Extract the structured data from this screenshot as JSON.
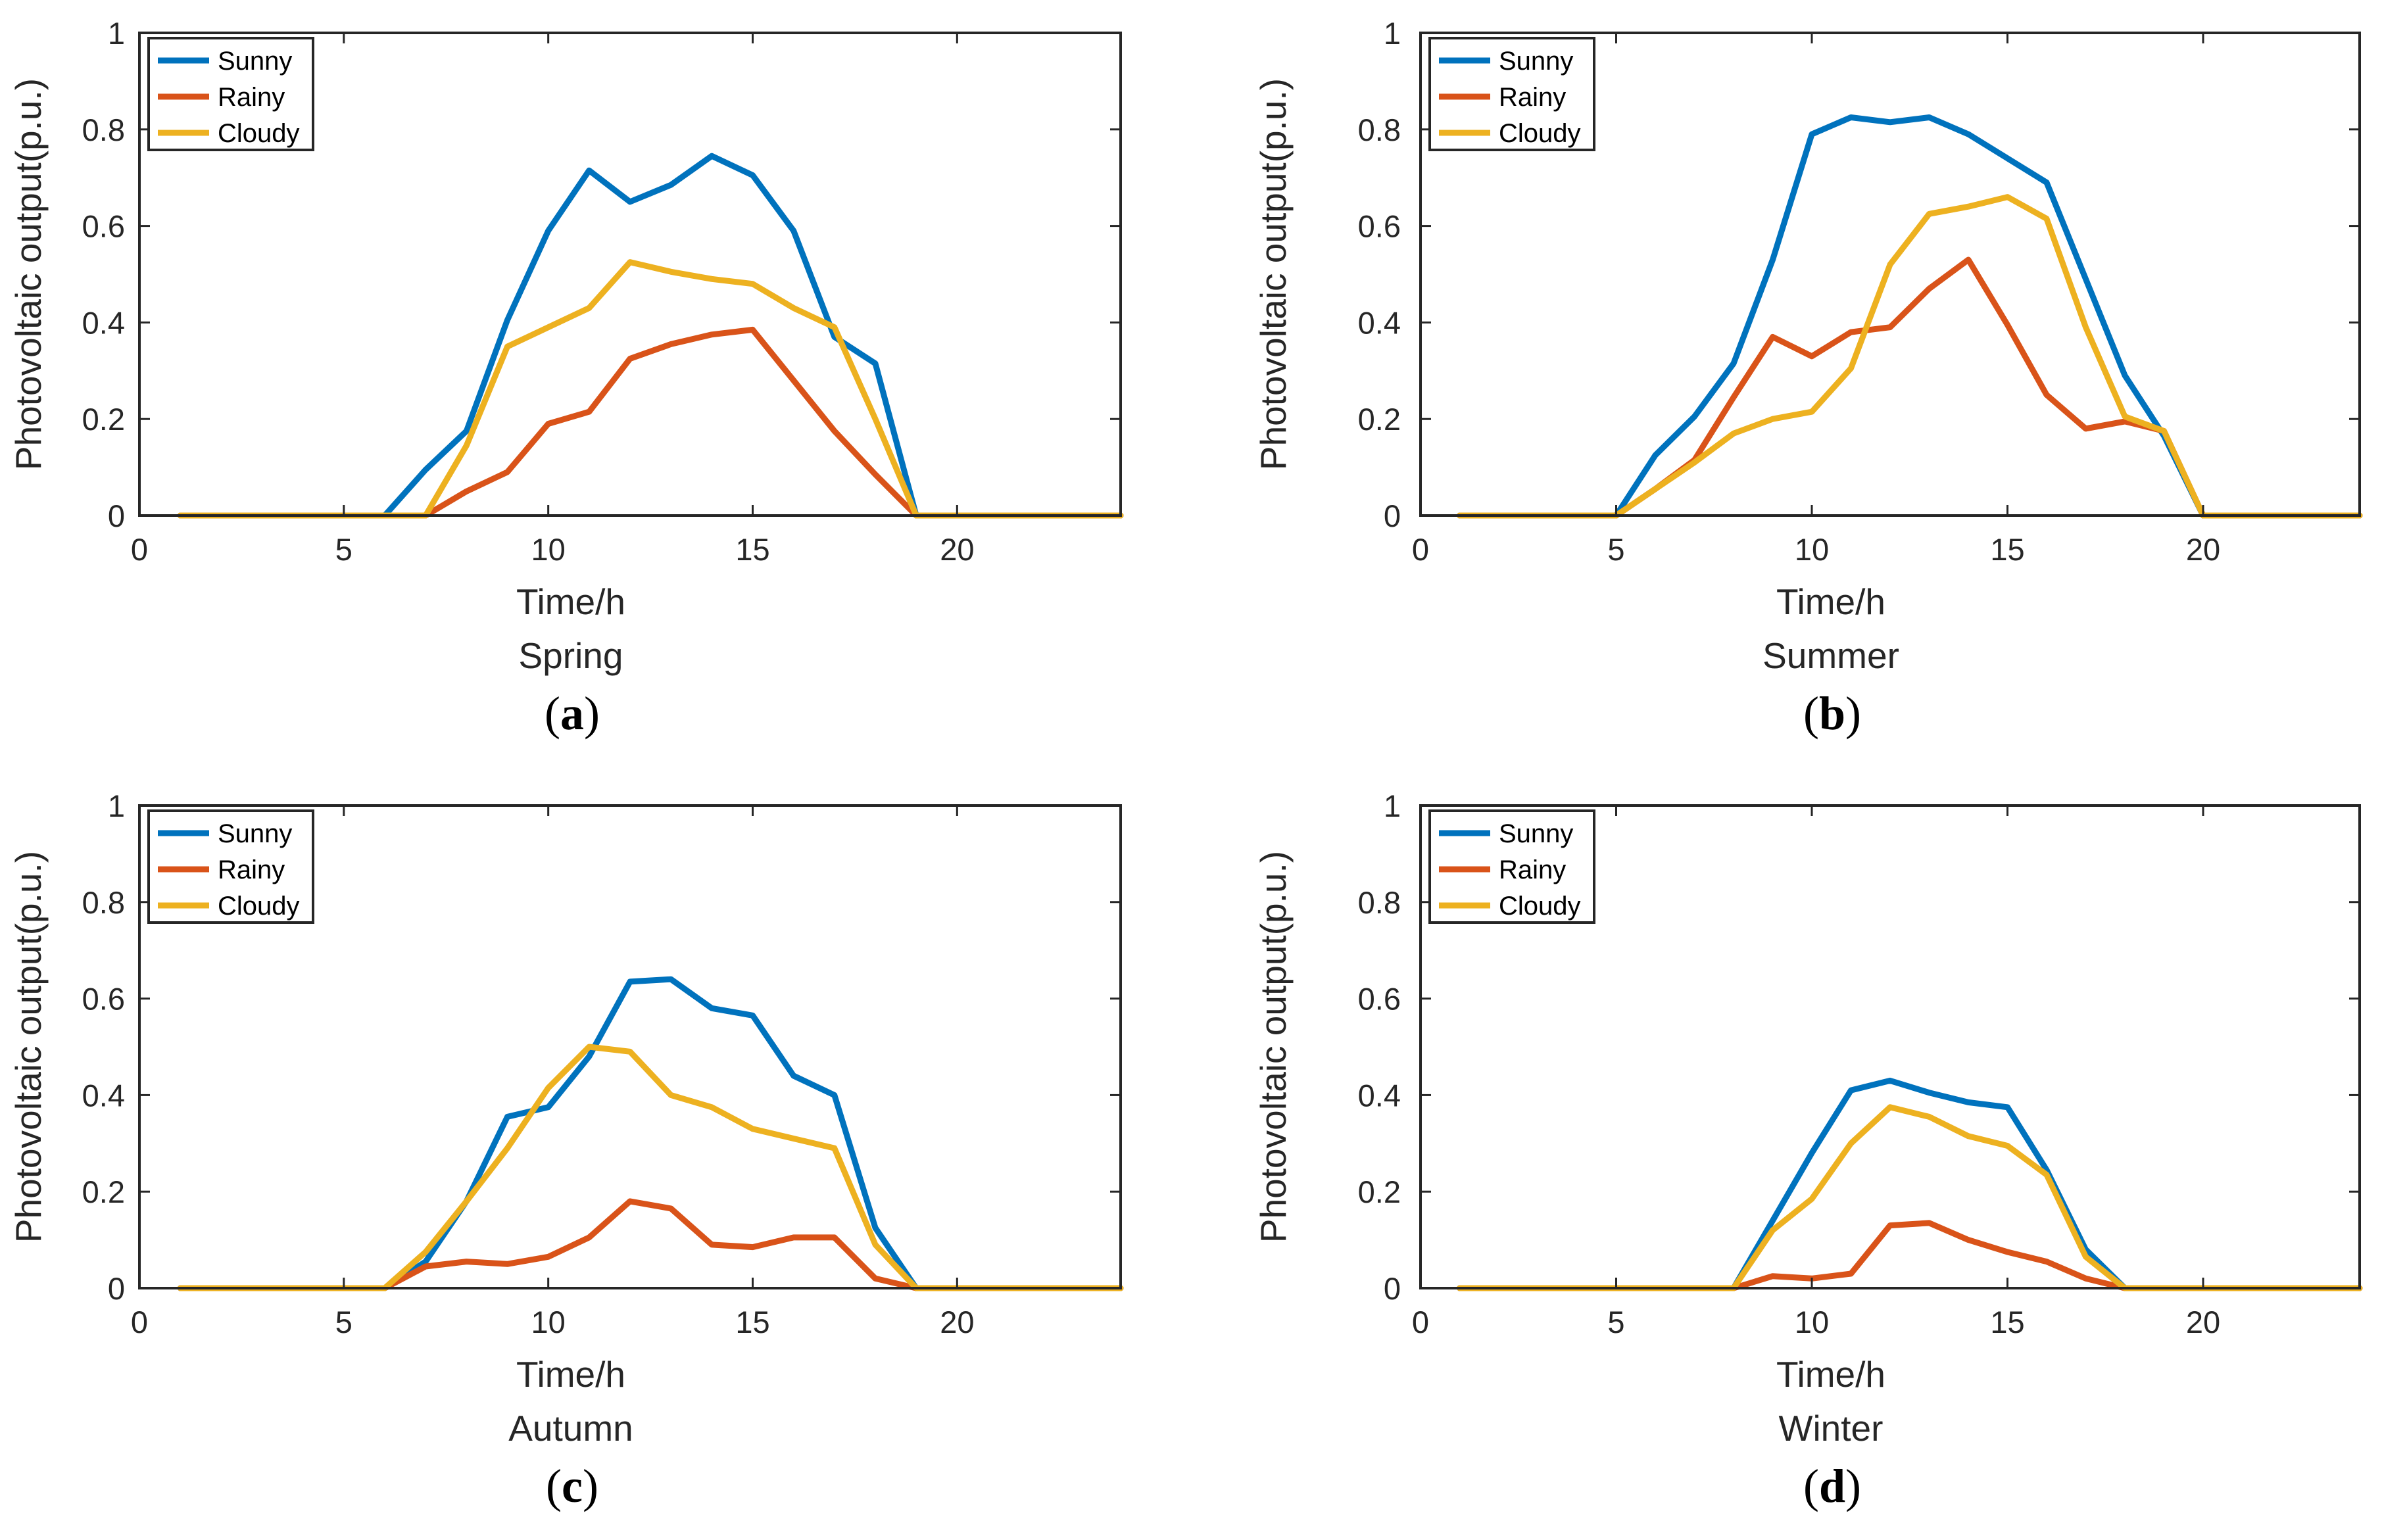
{
  "series_colors": {
    "Sunny": "#0072BD",
    "Rainy": "#D95319",
    "Cloudy": "#EDB120"
  },
  "chart_data": [
    {
      "type": "line",
      "panel": "a",
      "subtitle": "Spring",
      "xlabel": "Time/h",
      "ylabel": "Photovoltaic output(p.u.)",
      "xlim": [
        0,
        24
      ],
      "ylim": [
        0,
        1
      ],
      "xticks": [
        0,
        5,
        10,
        15,
        20
      ],
      "yticks": [
        0,
        0.2,
        0.4,
        0.6,
        0.8,
        1
      ],
      "legend_position": "top-left",
      "x": [
        1,
        2,
        3,
        4,
        5,
        6,
        7,
        8,
        9,
        10,
        11,
        12,
        13,
        14,
        15,
        16,
        17,
        18,
        19,
        20,
        21,
        22,
        23,
        24
      ],
      "series": [
        {
          "name": "Sunny",
          "values": [
            0,
            0,
            0,
            0,
            0,
            0,
            0.095,
            0.175,
            0.405,
            0.59,
            0.715,
            0.65,
            0.685,
            0.745,
            0.705,
            0.59,
            0.37,
            0.315,
            0,
            0,
            0,
            0,
            0,
            0
          ]
        },
        {
          "name": "Rainy",
          "values": [
            0,
            0,
            0,
            0,
            0,
            0,
            0,
            0.05,
            0.09,
            0.19,
            0.215,
            0.325,
            0.355,
            0.375,
            0.385,
            0.28,
            0.175,
            0.085,
            0,
            0,
            0,
            0,
            0,
            0
          ]
        },
        {
          "name": "Cloudy",
          "values": [
            0,
            0,
            0,
            0,
            0,
            0,
            0,
            0.145,
            0.35,
            0.39,
            0.43,
            0.525,
            0.505,
            0.49,
            0.48,
            0.43,
            0.39,
            0.2,
            0,
            0,
            0,
            0,
            0,
            0
          ]
        }
      ]
    },
    {
      "type": "line",
      "panel": "b",
      "subtitle": "Summer",
      "xlabel": "Time/h",
      "ylabel": "Photovoltaic output(p.u.)",
      "xlim": [
        0,
        24
      ],
      "ylim": [
        0,
        1
      ],
      "xticks": [
        0,
        5,
        10,
        15,
        20
      ],
      "yticks": [
        0,
        0.2,
        0.4,
        0.6,
        0.8,
        1
      ],
      "legend_position": "top-left",
      "x": [
        1,
        2,
        3,
        4,
        5,
        6,
        7,
        8,
        9,
        10,
        11,
        12,
        13,
        14,
        15,
        16,
        17,
        18,
        19,
        20,
        21,
        22,
        23,
        24
      ],
      "series": [
        {
          "name": "Sunny",
          "values": [
            0,
            0,
            0,
            0,
            0,
            0.125,
            0.205,
            0.315,
            0.53,
            0.79,
            0.825,
            0.815,
            0.825,
            0.79,
            0.74,
            0.69,
            0.49,
            0.29,
            0.165,
            0,
            0,
            0,
            0,
            0
          ]
        },
        {
          "name": "Rainy",
          "values": [
            0,
            0,
            0,
            0,
            0,
            0.055,
            0.115,
            0.245,
            0.37,
            0.33,
            0.38,
            0.39,
            0.47,
            0.53,
            0.395,
            0.25,
            0.18,
            0.195,
            0.175,
            0,
            0,
            0,
            0,
            0
          ]
        },
        {
          "name": "Cloudy",
          "values": [
            0,
            0,
            0,
            0,
            0,
            0.055,
            0.11,
            0.17,
            0.2,
            0.215,
            0.305,
            0.52,
            0.625,
            0.64,
            0.66,
            0.615,
            0.39,
            0.205,
            0.175,
            0,
            0,
            0,
            0,
            0
          ]
        }
      ]
    },
    {
      "type": "line",
      "panel": "c",
      "subtitle": "Autumn",
      "xlabel": "Time/h",
      "ylabel": "Photovoltaic output(p.u.)",
      "xlim": [
        0,
        24
      ],
      "ylim": [
        0,
        1
      ],
      "xticks": [
        0,
        5,
        10,
        15,
        20
      ],
      "yticks": [
        0,
        0.2,
        0.4,
        0.6,
        0.8,
        1
      ],
      "legend_position": "top-left",
      "x": [
        1,
        2,
        3,
        4,
        5,
        6,
        7,
        8,
        9,
        10,
        11,
        12,
        13,
        14,
        15,
        16,
        17,
        18,
        19,
        20,
        21,
        22,
        23,
        24
      ],
      "series": [
        {
          "name": "Sunny",
          "values": [
            0,
            0,
            0,
            0,
            0,
            0,
            0.055,
            0.18,
            0.355,
            0.375,
            0.48,
            0.635,
            0.64,
            0.58,
            0.565,
            0.44,
            0.4,
            0.125,
            0,
            0,
            0,
            0,
            0,
            0
          ]
        },
        {
          "name": "Rainy",
          "values": [
            0,
            0,
            0,
            0,
            0,
            0,
            0.045,
            0.055,
            0.05,
            0.065,
            0.105,
            0.18,
            0.165,
            0.09,
            0.085,
            0.105,
            0.105,
            0.02,
            0,
            0,
            0,
            0,
            0,
            0
          ]
        },
        {
          "name": "Cloudy",
          "values": [
            0,
            0,
            0,
            0,
            0,
            0,
            0.075,
            0.18,
            0.29,
            0.415,
            0.5,
            0.49,
            0.4,
            0.375,
            0.33,
            0.31,
            0.29,
            0.09,
            0,
            0,
            0,
            0,
            0,
            0
          ]
        }
      ]
    },
    {
      "type": "line",
      "panel": "d",
      "subtitle": "Winter",
      "xlabel": "Time/h",
      "ylabel": "Photovoltaic output(p.u.)",
      "xlim": [
        0,
        24
      ],
      "ylim": [
        0,
        1
      ],
      "xticks": [
        0,
        5,
        10,
        15,
        20
      ],
      "yticks": [
        0,
        0.2,
        0.4,
        0.6,
        0.8,
        1
      ],
      "legend_position": "top-left",
      "x": [
        1,
        2,
        3,
        4,
        5,
        6,
        7,
        8,
        9,
        10,
        11,
        12,
        13,
        14,
        15,
        16,
        17,
        18,
        19,
        20,
        21,
        22,
        23,
        24
      ],
      "series": [
        {
          "name": "Sunny",
          "values": [
            0,
            0,
            0,
            0,
            0,
            0,
            0,
            0,
            0.14,
            0.28,
            0.41,
            0.43,
            0.405,
            0.385,
            0.375,
            0.245,
            0.08,
            0,
            0,
            0,
            0,
            0,
            0,
            0
          ]
        },
        {
          "name": "Rainy",
          "values": [
            0,
            0,
            0,
            0,
            0,
            0,
            0,
            0,
            0.025,
            0.02,
            0.03,
            0.13,
            0.135,
            0.1,
            0.075,
            0.055,
            0.02,
            0,
            0,
            0,
            0,
            0,
            0,
            0
          ]
        },
        {
          "name": "Cloudy",
          "values": [
            0,
            0,
            0,
            0,
            0,
            0,
            0,
            0,
            0.12,
            0.185,
            0.3,
            0.375,
            0.355,
            0.315,
            0.295,
            0.235,
            0.065,
            0,
            0,
            0,
            0,
            0,
            0,
            0
          ]
        }
      ]
    }
  ]
}
